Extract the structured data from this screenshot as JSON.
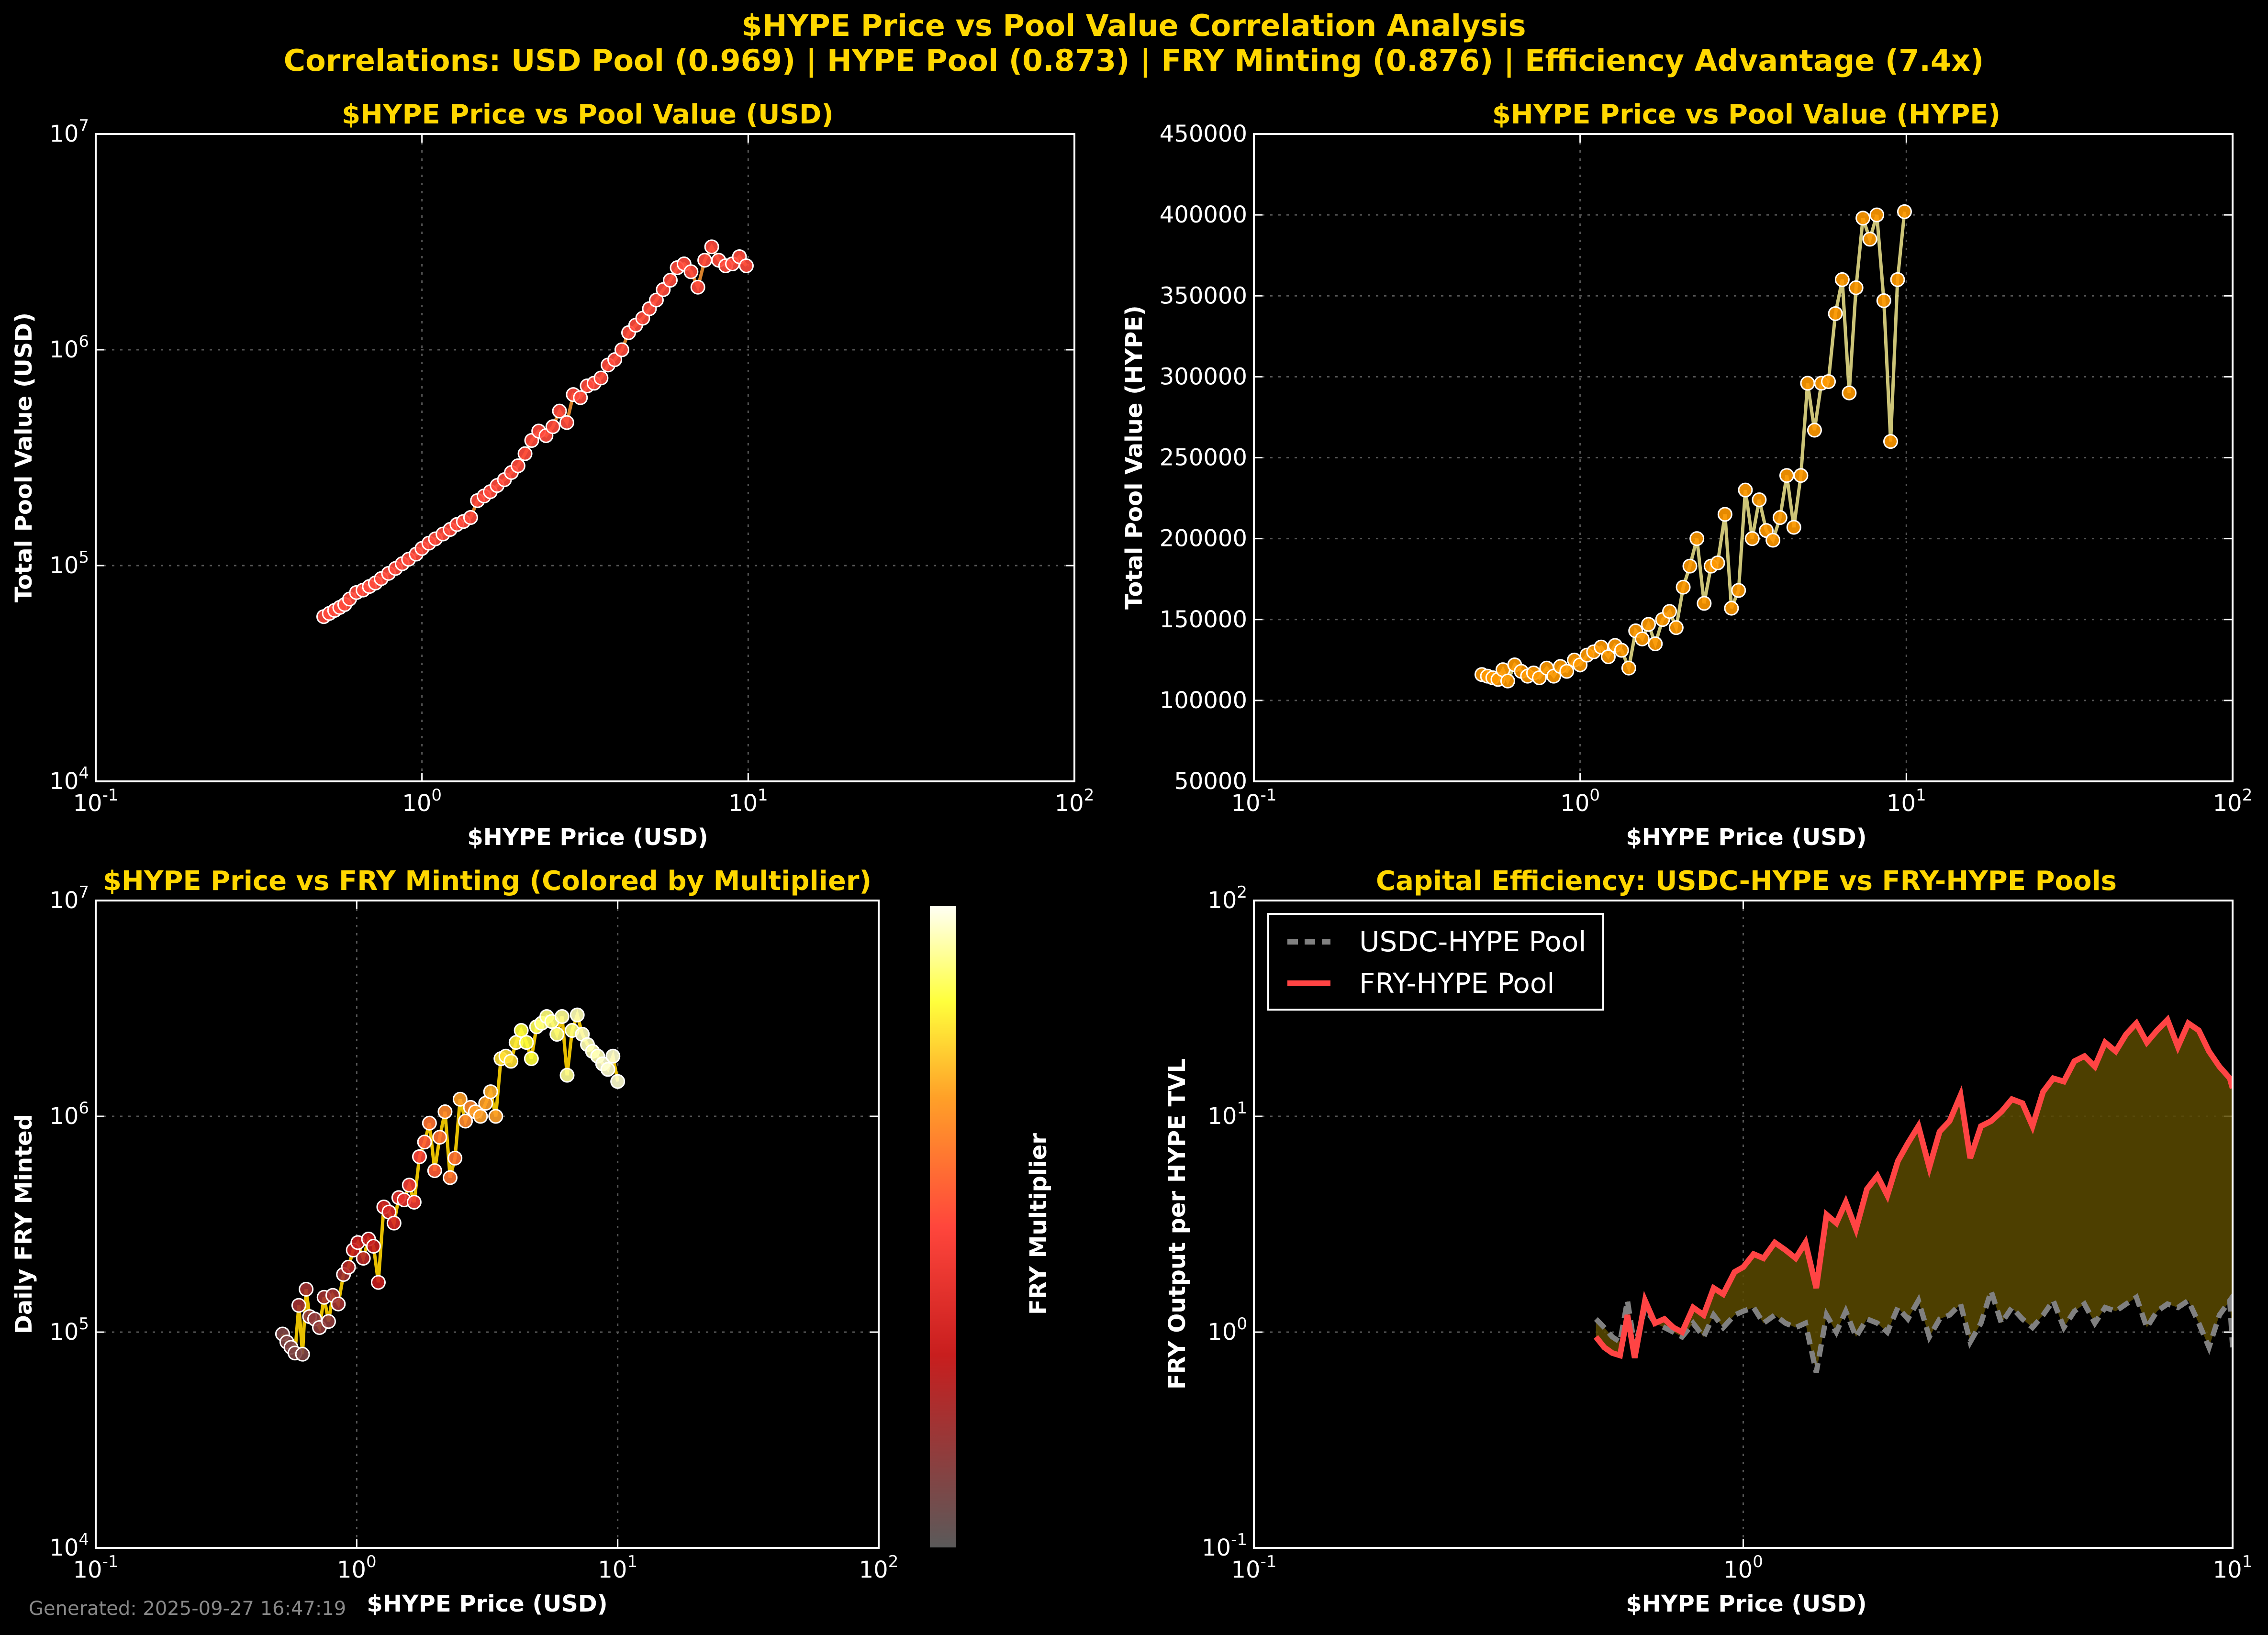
{
  "figure": {
    "title": "$HYPE Price vs Pool Value Correlation Analysis",
    "subtitle": "Correlations: USD Pool (0.969) | HYPE Pool (0.873) | FRY Minting (0.876) | Efficiency Advantage (7.4x)",
    "footer": "Generated: 2025-09-27 16:47:19"
  },
  "chart_data": [
    {
      "id": "usd_pool",
      "type": "scatter",
      "title": "$HYPE Price vs Pool Value (USD)",
      "xlabel": "$HYPE Price (USD)",
      "ylabel": "Total Pool Value (USD)",
      "xscale": "log",
      "yscale": "log",
      "xlim": [
        0.1,
        100
      ],
      "ylim": [
        10000,
        10000000
      ],
      "grid": true,
      "colors": {
        "line": "#FF9933",
        "marker": "#FF4A3D",
        "edge": "#FFFFFF"
      },
      "series": [
        {
          "x": [
            0.5,
            0.52,
            0.54,
            0.56,
            0.58,
            0.6,
            0.63,
            0.66,
            0.69,
            0.72,
            0.75,
            0.79,
            0.83,
            0.87,
            0.91,
            0.96,
            1.0,
            1.05,
            1.1,
            1.16,
            1.22,
            1.28,
            1.34,
            1.41,
            1.48,
            1.55,
            1.62,
            1.7,
            1.79,
            1.88,
            1.97,
            2.07,
            2.17,
            2.28,
            2.4,
            2.52,
            2.64,
            2.78,
            2.91,
            3.06,
            3.21,
            3.37,
            3.54,
            3.72,
            3.9,
            4.1,
            4.3,
            4.52,
            4.75,
            4.98,
            5.23,
            5.49,
            5.77,
            6.06,
            6.36,
            6.68,
            7.01,
            7.36,
            7.73,
            8.12,
            8.53,
            8.95,
            9.4,
            9.87
          ],
          "y": [
            58000,
            60000,
            62000,
            64000,
            66000,
            70000,
            75000,
            77000,
            80000,
            83000,
            87000,
            92000,
            97000,
            102000,
            107000,
            113000,
            120000,
            127000,
            133000,
            140000,
            147000,
            155000,
            160000,
            167000,
            200000,
            210000,
            220000,
            235000,
            250000,
            270000,
            290000,
            330000,
            380000,
            420000,
            400000,
            440000,
            520000,
            460000,
            620000,
            600000,
            680000,
            700000,
            740000,
            850000,
            900000,
            1000000,
            1200000,
            1300000,
            1400000,
            1550000,
            1700000,
            1900000,
            2100000,
            2400000,
            2500000,
            2300000,
            1950000,
            2600000,
            3000000,
            2600000,
            2450000,
            2500000,
            2700000,
            2450000
          ]
        }
      ]
    },
    {
      "id": "hype_pool",
      "type": "line",
      "title": "$HYPE Price vs Pool Value (HYPE)",
      "xlabel": "$HYPE Price (USD)",
      "ylabel": "Total Pool Value (HYPE)",
      "xscale": "log",
      "yscale": "linear",
      "xlim": [
        0.1,
        100
      ],
      "ylim": [
        50000,
        450000
      ],
      "yticks": [
        50000,
        100000,
        150000,
        200000,
        250000,
        300000,
        350000,
        400000,
        450000
      ],
      "grid": true,
      "colors": {
        "line": "#F0E68C",
        "marker": "#FF9900",
        "edge": "#FFFFFF"
      },
      "series": [
        {
          "x": [
            0.5,
            0.52,
            0.54,
            0.56,
            0.58,
            0.6,
            0.63,
            0.66,
            0.69,
            0.72,
            0.75,
            0.79,
            0.83,
            0.87,
            0.91,
            0.96,
            1.0,
            1.05,
            1.1,
            1.16,
            1.22,
            1.28,
            1.34,
            1.41,
            1.48,
            1.55,
            1.62,
            1.7,
            1.79,
            1.88,
            1.97,
            2.07,
            2.17,
            2.28,
            2.4,
            2.52,
            2.64,
            2.78,
            2.91,
            3.06,
            3.21,
            3.37,
            3.54,
            3.72,
            3.9,
            4.1,
            4.3,
            4.52,
            4.75,
            4.98,
            5.23,
            5.49,
            5.77,
            6.06,
            6.36,
            6.68,
            7.01,
            7.36,
            7.73,
            8.12,
            8.53,
            8.95,
            9.4,
            9.87
          ],
          "y": [
            116000,
            115000,
            114000,
            113000,
            119000,
            112000,
            122000,
            118000,
            115000,
            117000,
            114000,
            120000,
            115000,
            121000,
            118000,
            125000,
            122000,
            128000,
            130000,
            133000,
            127000,
            134000,
            131000,
            120000,
            143000,
            138000,
            147000,
            135000,
            150000,
            155000,
            145000,
            170000,
            183000,
            200000,
            160000,
            183000,
            185000,
            215000,
            157000,
            168000,
            230000,
            200000,
            224000,
            205000,
            199000,
            213000,
            239000,
            207000,
            239000,
            296000,
            267000,
            296000,
            297000,
            339000,
            360000,
            290000,
            355000,
            398000,
            385000,
            400000,
            347000,
            260000,
            360000,
            402000
          ]
        }
      ]
    },
    {
      "id": "fry_minting",
      "type": "scatter",
      "title": "$HYPE Price vs FRY Minting (Colored by Multiplier)",
      "xlabel": "$HYPE Price (USD)",
      "ylabel": "Daily FRY Minted",
      "colorbar_label": "FRY Multiplier",
      "xscale": "log",
      "yscale": "log",
      "xlim": [
        0.1,
        100
      ],
      "ylim": [
        10000,
        10000000
      ],
      "grid": true,
      "colors": {
        "line": "#E8C000",
        "edge": "#FFFFFF"
      },
      "series": [
        {
          "x": [
            0.52,
            0.54,
            0.56,
            0.58,
            0.6,
            0.62,
            0.64,
            0.66,
            0.69,
            0.72,
            0.75,
            0.78,
            0.81,
            0.85,
            0.89,
            0.93,
            0.97,
            1.01,
            1.06,
            1.11,
            1.16,
            1.21,
            1.27,
            1.33,
            1.39,
            1.45,
            1.52,
            1.59,
            1.66,
            1.74,
            1.82,
            1.9,
            1.99,
            2.08,
            2.18,
            2.28,
            2.38,
            2.49,
            2.61,
            2.73,
            2.85,
            2.98,
            3.12,
            3.26,
            3.41,
            3.57,
            3.73,
            3.9,
            4.08,
            4.27,
            4.47,
            4.67,
            4.89,
            5.11,
            5.35,
            5.59,
            5.85,
            6.12,
            6.4,
            6.69,
            7.0,
            7.32,
            7.66,
            8.01,
            8.38,
            8.76,
            9.17,
            9.59,
            10.0
          ],
          "y": [
            98000,
            90000,
            85000,
            80000,
            133000,
            79000,
            158000,
            118000,
            115000,
            105000,
            145000,
            112000,
            148000,
            135000,
            185000,
            200000,
            240000,
            260000,
            220000,
            270000,
            250000,
            170000,
            380000,
            360000,
            320000,
            420000,
            410000,
            480000,
            400000,
            650000,
            760000,
            930000,
            560000,
            800000,
            1050000,
            520000,
            640000,
            1200000,
            950000,
            1100000,
            1050000,
            1000000,
            1150000,
            1300000,
            1000000,
            1850000,
            1900000,
            1800000,
            2200000,
            2500000,
            2200000,
            1850000,
            2600000,
            2700000,
            2900000,
            2750000,
            2400000,
            2900000,
            1550000,
            2500000,
            2950000,
            2400000,
            2150000,
            2000000,
            1900000,
            1750000,
            1650000,
            1900000,
            1450000
          ],
          "multiplier": [
            0.1,
            0.1,
            0.1,
            0.1,
            0.2,
            0.1,
            0.2,
            0.15,
            0.15,
            0.15,
            0.2,
            0.15,
            0.2,
            0.2,
            0.2,
            0.25,
            0.3,
            0.3,
            0.25,
            0.3,
            0.3,
            0.3,
            0.35,
            0.35,
            0.35,
            0.4,
            0.4,
            0.45,
            0.45,
            0.5,
            0.55,
            0.6,
            0.55,
            0.6,
            0.65,
            0.6,
            0.6,
            0.7,
            0.65,
            0.65,
            0.7,
            0.7,
            0.7,
            0.72,
            0.7,
            0.8,
            0.8,
            0.8,
            0.82,
            0.85,
            0.85,
            0.85,
            0.87,
            0.9,
            0.9,
            0.9,
            0.9,
            0.92,
            0.92,
            0.9,
            0.95,
            0.95,
            0.95,
            0.95,
            0.95,
            0.97,
            0.97,
            0.97,
            0.97
          ]
        }
      ]
    },
    {
      "id": "capital_efficiency",
      "type": "area",
      "title": "Capital Efficiency: USDC-HYPE vs FRY-HYPE Pools",
      "xlabel": "$HYPE Price (USD)",
      "ylabel": "FRY Output per HYPE TVL",
      "xscale": "log",
      "yscale": "log",
      "xlim": [
        0.1,
        10
      ],
      "ylim": [
        0.1,
        100
      ],
      "grid": true,
      "legend": "upper-left",
      "colors": {
        "usdc": "#808080",
        "fry": "#FF4444",
        "fill": "#5A4A00"
      },
      "series": [
        {
          "name": "USDC-HYPE Pool",
          "style": "dashed",
          "x": [
            0.5,
            0.52,
            0.54,
            0.56,
            0.58,
            0.6,
            0.63,
            0.66,
            0.69,
            0.72,
            0.75,
            0.79,
            0.83,
            0.87,
            0.91,
            0.96,
            1.0,
            1.05,
            1.1,
            1.16,
            1.22,
            1.28,
            1.34,
            1.41,
            1.48,
            1.55,
            1.62,
            1.7,
            1.79,
            1.88,
            1.97,
            2.07,
            2.17,
            2.28,
            2.4,
            2.52,
            2.64,
            2.78,
            2.91,
            3.06,
            3.21,
            3.37,
            3.54,
            3.72,
            3.9,
            4.1,
            4.3,
            4.52,
            4.75,
            4.98,
            5.23,
            5.49,
            5.77,
            6.06,
            6.36,
            6.68,
            7.01,
            7.36,
            7.73,
            8.12,
            8.53,
            8.95,
            9.4,
            9.87,
            10.0
          ],
          "y": [
            1.15,
            1.05,
            0.95,
            0.9,
            1.4,
            0.85,
            1.3,
            1.1,
            1.05,
            1.0,
            0.95,
            1.1,
            0.95,
            1.2,
            1.05,
            1.2,
            1.25,
            1.3,
            1.1,
            1.2,
            1.1,
            1.05,
            1.1,
            0.65,
            1.2,
            1.0,
            1.25,
            0.95,
            1.15,
            1.1,
            1.0,
            1.3,
            1.15,
            1.4,
            0.95,
            1.15,
            1.2,
            1.35,
            0.9,
            1.1,
            1.55,
            1.1,
            1.3,
            1.15,
            1.05,
            1.2,
            1.4,
            1.05,
            1.25,
            1.35,
            1.1,
            1.3,
            1.25,
            1.35,
            1.45,
            1.05,
            1.25,
            1.35,
            1.3,
            1.4,
            1.1,
            0.85,
            1.2,
            1.4,
            0.85
          ]
        },
        {
          "name": "FRY-HYPE Pool",
          "style": "solid",
          "x": [
            0.5,
            0.52,
            0.54,
            0.56,
            0.58,
            0.6,
            0.63,
            0.66,
            0.69,
            0.72,
            0.75,
            0.79,
            0.83,
            0.87,
            0.91,
            0.96,
            1.0,
            1.05,
            1.1,
            1.16,
            1.22,
            1.28,
            1.34,
            1.41,
            1.48,
            1.55,
            1.62,
            1.7,
            1.79,
            1.88,
            1.97,
            2.07,
            2.17,
            2.28,
            2.4,
            2.52,
            2.64,
            2.78,
            2.91,
            3.06,
            3.21,
            3.37,
            3.54,
            3.72,
            3.9,
            4.1,
            4.3,
            4.52,
            4.75,
            4.98,
            5.23,
            5.49,
            5.77,
            6.06,
            6.36,
            6.68,
            7.01,
            7.36,
            7.73,
            8.12,
            8.53,
            8.95,
            9.4,
            9.87,
            10.0
          ],
          "y": [
            0.95,
            0.85,
            0.8,
            0.78,
            1.2,
            0.76,
            1.4,
            1.1,
            1.15,
            1.05,
            1.0,
            1.3,
            1.2,
            1.6,
            1.5,
            1.9,
            2.0,
            2.3,
            2.2,
            2.6,
            2.4,
            2.2,
            2.6,
            1.6,
            3.5,
            3.2,
            4.0,
            3.0,
            4.6,
            5.3,
            4.3,
            6.2,
            7.5,
            9.0,
            5.8,
            8.5,
            9.5,
            12.5,
            6.4,
            9.0,
            9.5,
            10.5,
            12.0,
            11.5,
            9.0,
            13.0,
            15.0,
            14.5,
            18.0,
            19.0,
            17.0,
            22.0,
            20.0,
            24.0,
            27.0,
            22.0,
            25.0,
            28.0,
            21.0,
            27.0,
            25.0,
            20.0,
            17.0,
            15.0,
            13.5
          ]
        }
      ]
    }
  ]
}
